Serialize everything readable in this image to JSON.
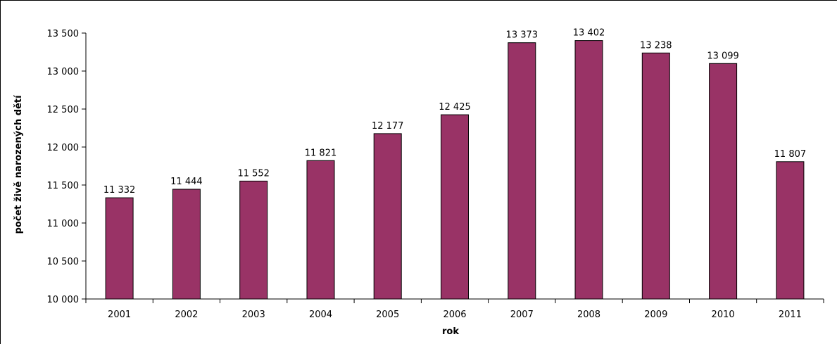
{
  "chart_data": {
    "type": "bar",
    "categories": [
      "2001",
      "2002",
      "2003",
      "2004",
      "2005",
      "2006",
      "2007",
      "2008",
      "2009",
      "2010",
      "2011"
    ],
    "values": [
      11332,
      11444,
      11552,
      11821,
      12177,
      12425,
      13373,
      13402,
      13238,
      13099,
      11807
    ],
    "data_labels": [
      "11 332",
      "11 444",
      "11 552",
      "11 821",
      "12 177",
      "12 425",
      "13 373",
      "13 402",
      "13 238",
      "13 099",
      "11 807"
    ],
    "y_ticks": [
      10000,
      10500,
      11000,
      11500,
      12000,
      12500,
      13000,
      13500
    ],
    "y_tick_labels": [
      "10 000",
      "10 500",
      "11 000",
      "11 500",
      "12 000",
      "12 500",
      "13 000",
      "13 500"
    ],
    "xlabel": "rok",
    "ylabel": "počet živě narozených dětí",
    "ylim": [
      10000,
      13500
    ],
    "grid": false,
    "legend": "none",
    "bar_color": "#993366",
    "bar_stroke": "#000000"
  }
}
